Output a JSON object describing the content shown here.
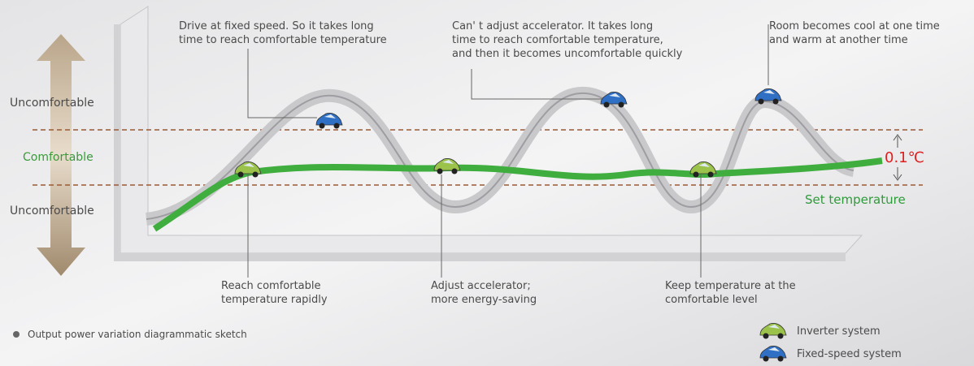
{
  "axis_labels": {
    "upper": "Uncomfortable",
    "middle": "Comfortable",
    "lower": "Uncomfortable"
  },
  "top_notes": [
    {
      "lines": [
        "Drive at fixed speed. So it takes long",
        "time to reach comfortable temperature"
      ]
    },
    {
      "lines": [
        "Can' t adjust accelerator. It takes long",
        "time to reach comfortable temperature,",
        "and then it becomes uncomfortable quickly"
      ]
    },
    {
      "lines": [
        "Room becomes cool at one time",
        "and warm at another time"
      ]
    }
  ],
  "bottom_notes": [
    {
      "lines": [
        "Reach comfortable",
        "temperature rapidly"
      ]
    },
    {
      "lines": [
        "Adjust accelerator;",
        "more energy-saving"
      ]
    },
    {
      "lines": [
        "Keep temperature at the",
        "comfortable level"
      ]
    }
  ],
  "band": "0.1℃",
  "set_temperature": "Set temperature",
  "footnote": "Output power variation diagrammatic sketch",
  "legend": [
    "Inverter system",
    "Fixed-speed system"
  ]
}
